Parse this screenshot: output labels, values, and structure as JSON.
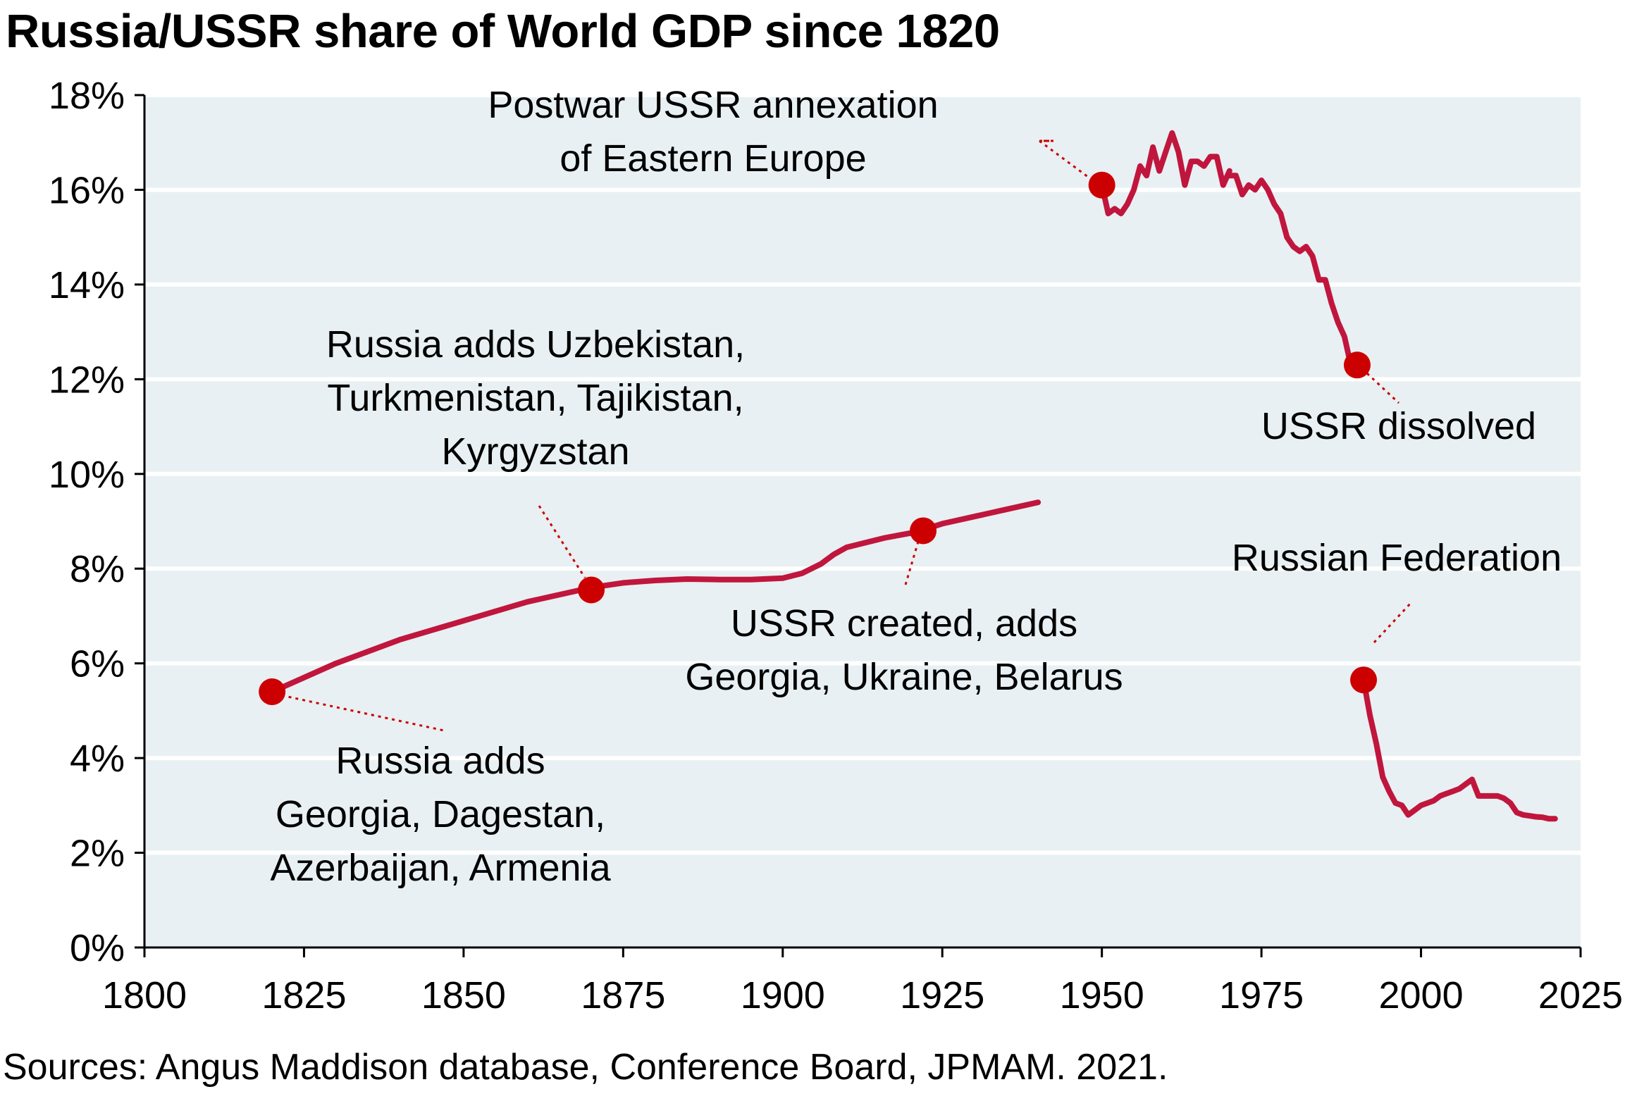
{
  "title": "Russia/USSR share of World GDP since 1820",
  "source": "Sources: Angus Maddison database, Conference Board, JPMAM. 2021.",
  "colors": {
    "line": "#c0163d",
    "marker": "#cc0000",
    "plot_bg": "#e8f0f3",
    "grid": "#ffffff",
    "leader": "#cc0000"
  },
  "chart_data": {
    "type": "line",
    "title": "Russia/USSR share of World GDP since 1820",
    "xlabel": "",
    "ylabel": "",
    "xlim": [
      1800,
      2025
    ],
    "ylim": [
      0,
      18
    ],
    "x_ticks": [
      1800,
      1825,
      1850,
      1875,
      1900,
      1925,
      1950,
      1975,
      2000,
      2025
    ],
    "y_ticks": [
      0,
      2,
      4,
      6,
      8,
      10,
      12,
      14,
      16,
      18
    ],
    "y_tick_labels": [
      "0%",
      "2%",
      "4%",
      "6%",
      "8%",
      "10%",
      "12%",
      "14%",
      "16%",
      "18%"
    ],
    "grid": "horizontal",
    "series": [
      {
        "x": [
          1820,
          1830,
          1840,
          1850,
          1860,
          1870,
          1875,
          1880,
          1885,
          1890,
          1895,
          1900,
          1903,
          1906,
          1908,
          1910,
          1913,
          1916,
          1920,
          1922,
          1925,
          1930,
          1935,
          1940
        ],
        "y": [
          5.4,
          6.0,
          6.5,
          6.9,
          7.3,
          7.6,
          7.7,
          7.75,
          7.78,
          7.77,
          7.77,
          7.8,
          7.9,
          8.1,
          8.3,
          8.45,
          8.55,
          8.65,
          8.75,
          8.82,
          8.95,
          9.1,
          9.25,
          9.4
        ]
      },
      {
        "x": [
          1950,
          1951,
          1952,
          1953,
          1954,
          1955,
          1956,
          1957,
          1958,
          1959,
          1960,
          1961,
          1962,
          1963,
          1964,
          1965,
          1966,
          1967,
          1968,
          1969,
          1970
        ],
        "y": [
          16.1,
          15.5,
          15.6,
          15.5,
          15.7,
          16.0,
          16.5,
          16.3,
          16.9,
          16.4,
          16.8,
          17.2,
          16.8,
          16.1,
          16.6,
          16.6,
          16.5,
          16.7,
          16.7,
          16.1,
          16.4
        ]
      },
      {
        "x": [
          1970,
          1971,
          1972,
          1973,
          1974,
          1975,
          1976,
          1977,
          1978,
          1979,
          1980,
          1981,
          1982,
          1983,
          1984,
          1985,
          1986,
          1987,
          1988,
          1989,
          1990
        ],
        "y": [
          16.3,
          16.3,
          15.9,
          16.1,
          16.0,
          16.2,
          16.0,
          15.7,
          15.5,
          15.0,
          14.8,
          14.7,
          14.8,
          14.6,
          14.1,
          14.1,
          13.6,
          13.2,
          12.9,
          12.3,
          12.3
        ]
      },
      {
        "x": [
          1991,
          1992,
          1993,
          1994,
          1995,
          1996,
          1997,
          1998,
          1999,
          2000,
          2001,
          2002,
          2003,
          2004,
          2005,
          2006,
          2007,
          2008,
          2009,
          2010,
          2011,
          2012,
          2013,
          2014,
          2015,
          2016,
          2017,
          2018,
          2019,
          2020,
          2021
        ],
        "y": [
          5.65,
          4.9,
          4.3,
          3.6,
          3.3,
          3.05,
          3.0,
          2.8,
          2.9,
          3.0,
          3.05,
          3.1,
          3.2,
          3.25,
          3.3,
          3.35,
          3.45,
          3.55,
          3.2,
          3.2,
          3.2,
          3.2,
          3.15,
          3.05,
          2.85,
          2.8,
          2.78,
          2.76,
          2.75,
          2.72,
          2.72
        ]
      }
    ],
    "markers": [
      {
        "x": 1820,
        "y": 5.4
      },
      {
        "x": 1870,
        "y": 7.55
      },
      {
        "x": 1922,
        "y": 8.8
      },
      {
        "x": 1950,
        "y": 16.1
      },
      {
        "x": 1990,
        "y": 12.3
      },
      {
        "x": 1991,
        "y": 5.65
      }
    ],
    "annotations": [
      {
        "lines": [
          "Russia adds",
          "Georgia, Dagestan,",
          "Azerbaijan, Armenia"
        ],
        "anchor": 0
      },
      {
        "lines": [
          "Russia adds Uzbekistan,",
          "Turkmenistan, Tajikistan,",
          "Kyrgyzstan"
        ],
        "anchor": 1
      },
      {
        "lines": [
          "USSR created, adds",
          "Georgia, Ukraine, Belarus"
        ],
        "anchor": 2
      },
      {
        "lines": [
          "Postwar USSR annexation",
          "of Eastern Europe"
        ],
        "anchor": 3
      },
      {
        "lines": [
          "USSR dissolved"
        ],
        "anchor": 4
      },
      {
        "lines": [
          "Russian Federation"
        ],
        "anchor": 5
      }
    ]
  }
}
